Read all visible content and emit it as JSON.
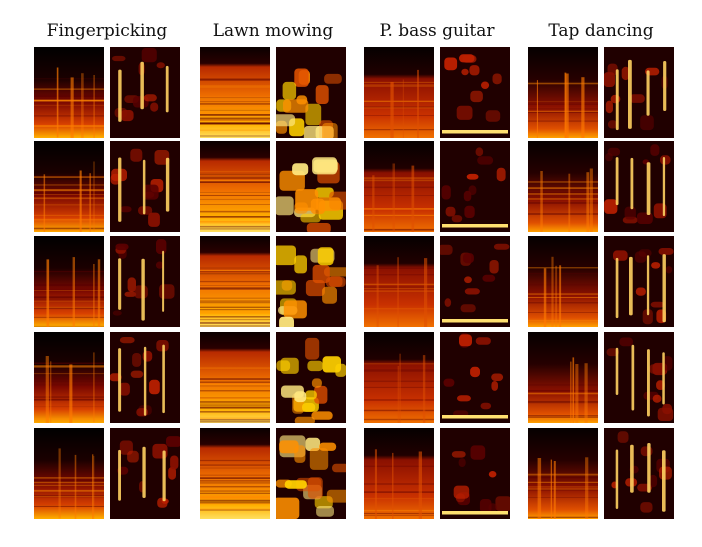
{
  "figure": {
    "columns": [
      {
        "title": "Fingerpicking",
        "theme": "fingerpicking"
      },
      {
        "title": "Lawn mowing",
        "theme": "lawn"
      },
      {
        "title": "P. bass guitar",
        "theme": "bass"
      },
      {
        "title": "Tap dancing",
        "theme": "tap"
      }
    ],
    "rows": 5,
    "panel_types": [
      "spectrogram",
      "saliency-map"
    ],
    "colormap": [
      "#000000",
      "#3a0000",
      "#7a0a00",
      "#c02000",
      "#ff6a00",
      "#ffc000",
      "#ffff80"
    ]
  }
}
